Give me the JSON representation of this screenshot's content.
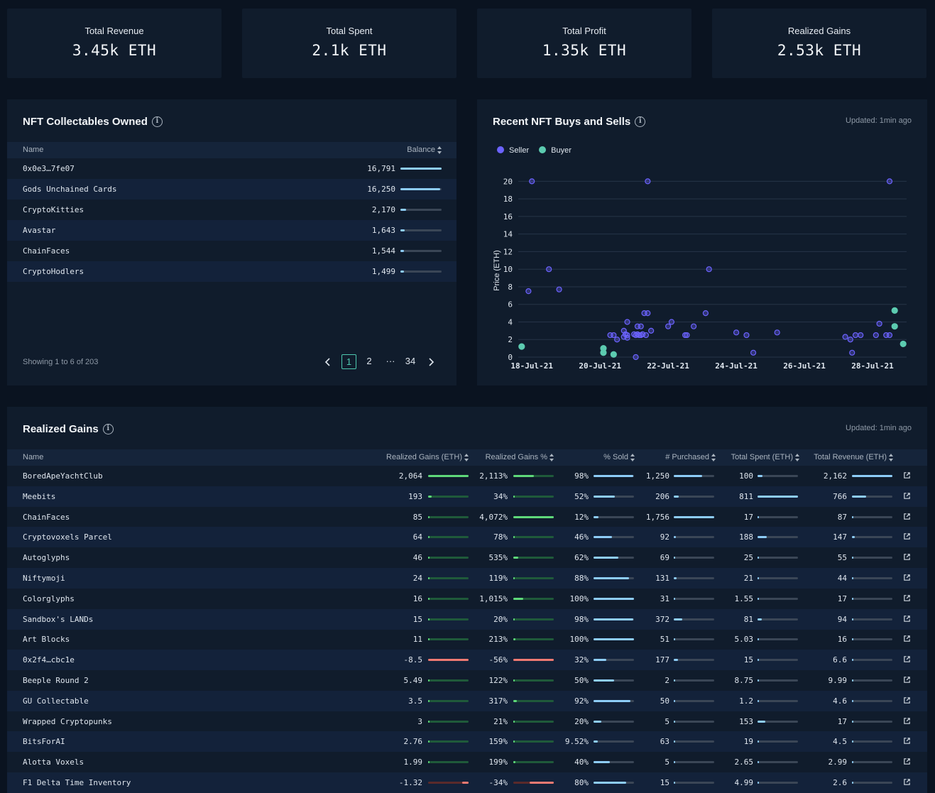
{
  "kpis": [
    {
      "label": "Total Revenue",
      "value": "3.45k ETH"
    },
    {
      "label": "Total Spent",
      "value": "2.1k ETH"
    },
    {
      "label": "Total Profit",
      "value": "1.35k ETH"
    },
    {
      "label": "Realized Gains",
      "value": "2.53k ETH"
    }
  ],
  "nft_owned": {
    "title": "NFT Collectables Owned",
    "col_name": "Name",
    "col_balance": "Balance",
    "rows": [
      {
        "name": "0x0e3…7fe07",
        "balance": "16,791",
        "ratio": 1.0
      },
      {
        "name": "Gods Unchained Cards",
        "balance": "16,250",
        "ratio": 0.97
      },
      {
        "name": "CryptoKitties",
        "balance": "2,170",
        "ratio": 0.13
      },
      {
        "name": "Avastar",
        "balance": "1,643",
        "ratio": 0.1
      },
      {
        "name": "ChainFaces",
        "balance": "1,544",
        "ratio": 0.09
      },
      {
        "name": "CryptoHodlers",
        "balance": "1,499",
        "ratio": 0.09
      }
    ],
    "showing": "Showing 1 to 6 of 203",
    "pages": [
      "1",
      "2",
      "···",
      "34"
    ],
    "bar_color": "#8ecdf7"
  },
  "buys_sells": {
    "title": "Recent NFT Buys and Sells",
    "updated": "Updated: 1min ago",
    "legend": [
      {
        "name": "Seller",
        "color": "#6c63ff"
      },
      {
        "name": "Buyer",
        "color": "#5ccbb0"
      }
    ]
  },
  "chart_data": {
    "type": "scatter",
    "title": "Recent NFT Buys and Sells",
    "ylabel": "Price (ETH)",
    "xlabel": "",
    "ylim": [
      0,
      21
    ],
    "yticks": [
      0,
      2,
      4,
      6,
      8,
      10,
      12,
      14,
      16,
      18,
      20
    ],
    "xlim": [
      17.6,
      29.0
    ],
    "xtick_values": [
      18,
      20,
      22,
      24,
      26,
      28
    ],
    "xtick_labels": [
      "18-Jul-21",
      "20-Jul-21",
      "22-Jul-21",
      "24-Jul-21",
      "26-Jul-21",
      "28-Jul-21"
    ],
    "x_unit": "day of July 2021",
    "grid": true,
    "series": [
      {
        "name": "Seller",
        "color": "#6c63ff",
        "points": [
          [
            17.9,
            7.5
          ],
          [
            18.0,
            20
          ],
          [
            18.5,
            10
          ],
          [
            18.8,
            7.7
          ],
          [
            20.3,
            2.5
          ],
          [
            20.4,
            2.5
          ],
          [
            20.5,
            2
          ],
          [
            20.7,
            2.3
          ],
          [
            20.7,
            3
          ],
          [
            20.75,
            2.6
          ],
          [
            20.8,
            2.5
          ],
          [
            20.8,
            2.2
          ],
          [
            20.8,
            4
          ],
          [
            21.0,
            2.6
          ],
          [
            21.05,
            2.5
          ],
          [
            21.1,
            3.5
          ],
          [
            21.1,
            2.6
          ],
          [
            21.15,
            2.5
          ],
          [
            21.2,
            2.5
          ],
          [
            21.2,
            3.5
          ],
          [
            21.25,
            2.6
          ],
          [
            21.3,
            5
          ],
          [
            21.35,
            2.5
          ],
          [
            21.4,
            5
          ],
          [
            21.5,
            3
          ],
          [
            21.05,
            0
          ],
          [
            21.4,
            20
          ],
          [
            22.0,
            3.5
          ],
          [
            22.1,
            4
          ],
          [
            22.5,
            2.5
          ],
          [
            22.55,
            2.5
          ],
          [
            22.75,
            3.5
          ],
          [
            23.1,
            5
          ],
          [
            23.2,
            10
          ],
          [
            24.0,
            2.8
          ],
          [
            24.3,
            2.5
          ],
          [
            24.5,
            0.5
          ],
          [
            25.2,
            2.8
          ],
          [
            27.2,
            2.3
          ],
          [
            27.35,
            2
          ],
          [
            27.4,
            0.5
          ],
          [
            27.5,
            2.5
          ],
          [
            27.65,
            2.5
          ],
          [
            28.1,
            2.5
          ],
          [
            28.2,
            3.8
          ],
          [
            28.4,
            2.5
          ],
          [
            28.5,
            2.5
          ],
          [
            28.5,
            20
          ]
        ]
      },
      {
        "name": "Buyer",
        "color": "#5ccbb0",
        "points": [
          [
            17.7,
            1.2
          ],
          [
            20.1,
            1
          ],
          [
            20.1,
            0.5
          ],
          [
            20.4,
            0.3
          ],
          [
            28.65,
            5.3
          ],
          [
            28.65,
            3.5
          ],
          [
            28.9,
            1.5
          ]
        ]
      }
    ]
  },
  "realized": {
    "title": "Realized Gains",
    "updated": "Updated: 1min ago",
    "headers": [
      "Name",
      "Realized Gains (ETH)",
      "Realized Gains %",
      "% Sold",
      "# Purchased",
      "Total Spent (ETH)",
      "Total Revenue (ETH)"
    ],
    "colors": {
      "positive": "#5fd97a",
      "positive_dim": "#1f5a3a",
      "negative": "#f07a72",
      "negative_dim": "#5a2a2a",
      "blue": "#8ecdf7",
      "track": "#3a4656"
    },
    "rows": [
      {
        "name": "BoredApeYachtClub",
        "gains": "2,064",
        "gains_r": 1.0,
        "pct": "2,113%",
        "pct_r": 0.5,
        "sold": "98%",
        "sold_r": 0.98,
        "purchased": "1,250",
        "purch_r": 0.71,
        "spent": "100",
        "spent_r": 0.12,
        "revenue": "2,162",
        "rev_r": 1.0
      },
      {
        "name": "Meebits",
        "gains": "193",
        "gains_r": 0.09,
        "pct": "34%",
        "pct_r": 0.02,
        "sold": "52%",
        "sold_r": 0.52,
        "purchased": "206",
        "purch_r": 0.12,
        "spent": "811",
        "spent_r": 1.0,
        "revenue": "766",
        "rev_r": 0.35
      },
      {
        "name": "ChainFaces",
        "gains": "85",
        "gains_r": 0.04,
        "pct": "4,072%",
        "pct_r": 1.0,
        "sold": "12%",
        "sold_r": 0.12,
        "purchased": "1,756",
        "purch_r": 1.0,
        "spent": "17",
        "spent_r": 0.02,
        "revenue": "87",
        "rev_r": 0.04
      },
      {
        "name": "Cryptovoxels Parcel",
        "gains": "64",
        "gains_r": 0.03,
        "pct": "78%",
        "pct_r": 0.02,
        "sold": "46%",
        "sold_r": 0.46,
        "purchased": "92",
        "purch_r": 0.05,
        "spent": "188",
        "spent_r": 0.23,
        "revenue": "147",
        "rev_r": 0.07
      },
      {
        "name": "Autoglyphs",
        "gains": "46",
        "gains_r": 0.02,
        "pct": "535%",
        "pct_r": 0.13,
        "sold": "62%",
        "sold_r": 0.62,
        "purchased": "69",
        "purch_r": 0.04,
        "spent": "25",
        "spent_r": 0.03,
        "revenue": "55",
        "rev_r": 0.03
      },
      {
        "name": "Niftymoji",
        "gains": "24",
        "gains_r": 0.01,
        "pct": "119%",
        "pct_r": 0.03,
        "sold": "88%",
        "sold_r": 0.88,
        "purchased": "131",
        "purch_r": 0.07,
        "spent": "21",
        "spent_r": 0.03,
        "revenue": "44",
        "rev_r": 0.02
      },
      {
        "name": "Colorglyphs",
        "gains": "16",
        "gains_r": 0.01,
        "pct": "1,015%",
        "pct_r": 0.25,
        "sold": "100%",
        "sold_r": 1.0,
        "purchased": "31",
        "purch_r": 0.02,
        "spent": "1.55",
        "spent_r": 0.01,
        "revenue": "17",
        "rev_r": 0.01
      },
      {
        "name": "Sandbox's LANDs",
        "gains": "15",
        "gains_r": 0.01,
        "pct": "20%",
        "pct_r": 0.01,
        "sold": "98%",
        "sold_r": 0.98,
        "purchased": "372",
        "purch_r": 0.21,
        "spent": "81",
        "spent_r": 0.1,
        "revenue": "94",
        "rev_r": 0.04
      },
      {
        "name": "Art Blocks",
        "gains": "11",
        "gains_r": 0.01,
        "pct": "213%",
        "pct_r": 0.05,
        "sold": "100%",
        "sold_r": 1.0,
        "purchased": "51",
        "purch_r": 0.03,
        "spent": "5.03",
        "spent_r": 0.01,
        "revenue": "16",
        "rev_r": 0.01
      },
      {
        "name": "0x2f4…cbc1e",
        "gains": "-8.5",
        "gains_r": -1.0,
        "pct": "-56%",
        "pct_r": -1.0,
        "sold": "32%",
        "sold_r": 0.32,
        "purchased": "177",
        "purch_r": 0.1,
        "spent": "15",
        "spent_r": 0.02,
        "revenue": "6.6",
        "rev_r": 0.01
      },
      {
        "name": "Beeple Round 2",
        "gains": "5.49",
        "gains_r": 0.0,
        "pct": "122%",
        "pct_r": 0.03,
        "sold": "50%",
        "sold_r": 0.5,
        "purchased": "2",
        "purch_r": 0.01,
        "spent": "8.75",
        "spent_r": 0.01,
        "revenue": "9.99",
        "rev_r": 0.01
      },
      {
        "name": "GU Collectable",
        "gains": "3.5",
        "gains_r": 0.0,
        "pct": "317%",
        "pct_r": 0.08,
        "sold": "92%",
        "sold_r": 0.92,
        "purchased": "50",
        "purch_r": 0.03,
        "spent": "1.2",
        "spent_r": 0.0,
        "revenue": "4.6",
        "rev_r": 0.0
      },
      {
        "name": "Wrapped Cryptopunks",
        "gains": "3",
        "gains_r": 0.0,
        "pct": "21%",
        "pct_r": 0.01,
        "sold": "20%",
        "sold_r": 0.2,
        "purchased": "5",
        "purch_r": 0.0,
        "spent": "153",
        "spent_r": 0.19,
        "revenue": "17",
        "rev_r": 0.01
      },
      {
        "name": "BitsForAI",
        "gains": "2.76",
        "gains_r": 0.0,
        "pct": "159%",
        "pct_r": 0.04,
        "sold": "9.52%",
        "sold_r": 0.1,
        "purchased": "63",
        "purch_r": 0.04,
        "spent": "19",
        "spent_r": 0.02,
        "revenue": "4.5",
        "rev_r": 0.0
      },
      {
        "name": "Alotta Voxels",
        "gains": "1.99",
        "gains_r": 0.0,
        "pct": "199%",
        "pct_r": 0.05,
        "sold": "40%",
        "sold_r": 0.4,
        "purchased": "5",
        "purch_r": 0.0,
        "spent": "2.65",
        "spent_r": 0.0,
        "revenue": "2.99",
        "rev_r": 0.0
      },
      {
        "name": "F1 Delta Time Inventory",
        "gains": "-1.32",
        "gains_r": -0.16,
        "pct": "-34%",
        "pct_r": -0.6,
        "sold": "80%",
        "sold_r": 0.8,
        "purchased": "15",
        "purch_r": 0.01,
        "spent": "4.99",
        "spent_r": 0.01,
        "revenue": "2.6",
        "rev_r": 0.0
      }
    ]
  }
}
